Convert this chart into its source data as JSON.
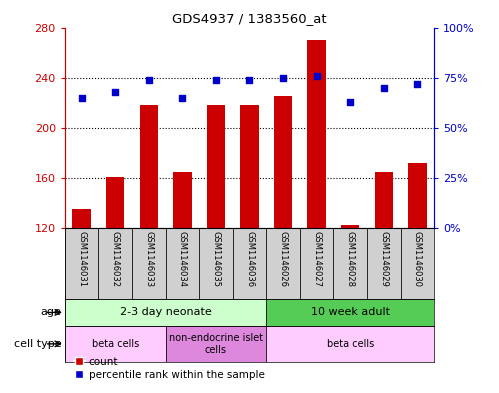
{
  "title": "GDS4937 / 1383560_at",
  "samples": [
    "GSM1146031",
    "GSM1146032",
    "GSM1146033",
    "GSM1146034",
    "GSM1146035",
    "GSM1146036",
    "GSM1146026",
    "GSM1146027",
    "GSM1146028",
    "GSM1146029",
    "GSM1146030"
  ],
  "counts": [
    135,
    161,
    218,
    165,
    218,
    218,
    225,
    270,
    122,
    165,
    172
  ],
  "percentiles": [
    65,
    68,
    74,
    65,
    74,
    74,
    75,
    76,
    63,
    70,
    72
  ],
  "ylim_left": [
    120,
    280
  ],
  "ylim_right": [
    0,
    100
  ],
  "yticks_left": [
    120,
    160,
    200,
    240,
    280
  ],
  "yticks_right": [
    0,
    25,
    50,
    75,
    100
  ],
  "bar_color": "#cc0000",
  "dot_color": "#0000cc",
  "axis_color_left": "#cc0000",
  "axis_color_right": "#0000cc",
  "age_groups": [
    {
      "label": "2-3 day neonate",
      "start": 0,
      "end": 5,
      "color": "#ccffcc"
    },
    {
      "label": "10 week adult",
      "start": 6,
      "end": 10,
      "color": "#66dd66"
    }
  ],
  "cell_type_groups": [
    {
      "label": "beta cells",
      "start": 0,
      "end": 2,
      "color": "#ffccff"
    },
    {
      "label": "non-endocrine islet\ncells",
      "start": 3,
      "end": 5,
      "color": "#ee88ee"
    },
    {
      "label": "beta cells",
      "start": 6,
      "end": 10,
      "color": "#ffccff"
    }
  ],
  "legend_count_label": "count",
  "legend_pct_label": "percentile rank within the sample",
  "age_label": "age",
  "cell_type_label": "cell type",
  "label_bg": "#d0d0d0",
  "plot_bg": "#ffffff"
}
